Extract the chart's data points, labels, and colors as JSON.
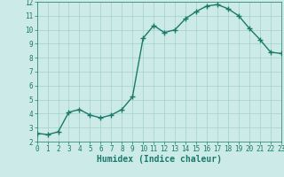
{
  "x": [
    0,
    1,
    2,
    3,
    4,
    5,
    6,
    7,
    8,
    9,
    10,
    11,
    12,
    13,
    14,
    15,
    16,
    17,
    18,
    19,
    20,
    21,
    22,
    23
  ],
  "y": [
    2.6,
    2.5,
    2.7,
    4.1,
    4.3,
    3.9,
    3.7,
    3.9,
    4.3,
    5.2,
    9.4,
    10.3,
    9.8,
    10.0,
    10.8,
    11.3,
    11.7,
    11.8,
    11.5,
    11.0,
    10.1,
    9.3,
    8.4,
    8.3
  ],
  "line_color": "#1a7a6a",
  "marker": "+",
  "marker_size": 4,
  "bg_color": "#cceae7",
  "grid_color": "#aad4d0",
  "xlabel": "Humidex (Indice chaleur)",
  "xlabel_fontsize": 7,
  "xlim": [
    0,
    23
  ],
  "ylim": [
    2,
    12
  ],
  "yticks": [
    2,
    3,
    4,
    5,
    6,
    7,
    8,
    9,
    10,
    11,
    12
  ],
  "xticks": [
    0,
    1,
    2,
    3,
    4,
    5,
    6,
    7,
    8,
    9,
    10,
    11,
    12,
    13,
    14,
    15,
    16,
    17,
    18,
    19,
    20,
    21,
    22,
    23
  ],
  "tick_color": "#1a7a6a",
  "tick_fontsize": 5.5,
  "linewidth": 1.0
}
